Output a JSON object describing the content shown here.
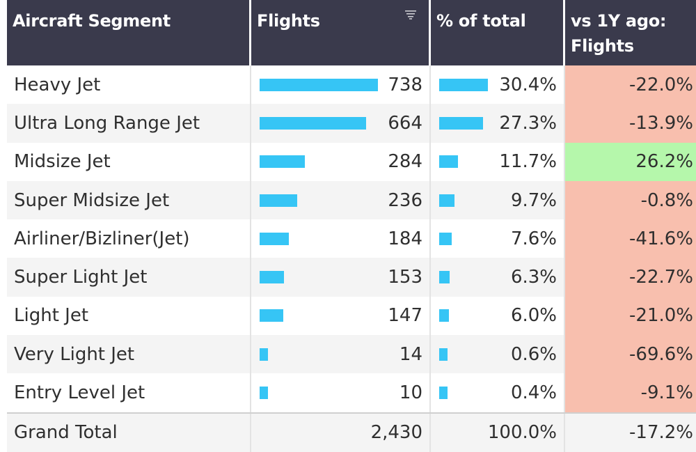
{
  "header": {
    "segment": "Aircraft Segment",
    "flights": "Flights",
    "pct": "% of total",
    "vs_line1": "vs 1Y ago:",
    "vs_line2": "Flights"
  },
  "rows": [
    {
      "segment": "Heavy Jet",
      "flights": "738",
      "pct": "30.4%",
      "vs": "-22.0%"
    },
    {
      "segment": "Ultra Long Range Jet",
      "flights": "664",
      "pct": "27.3%",
      "vs": "-13.9%"
    },
    {
      "segment": "Midsize Jet",
      "flights": "284",
      "pct": "11.7%",
      "vs": "26.2%"
    },
    {
      "segment": "Super Midsize Jet",
      "flights": "236",
      "pct": "9.7%",
      "vs": "-0.8%"
    },
    {
      "segment": "Airliner/Bizliner(Jet)",
      "flights": "184",
      "pct": "7.6%",
      "vs": "-41.6%"
    },
    {
      "segment": "Super Light Jet",
      "flights": "153",
      "pct": "6.3%",
      "vs": "-22.7%"
    },
    {
      "segment": "Light Jet",
      "flights": "147",
      "pct": "6.0%",
      "vs": "-21.0%"
    },
    {
      "segment": "Very Light Jet",
      "flights": "14",
      "pct": "0.6%",
      "vs": "-69.6%"
    },
    {
      "segment": "Entry Level Jet",
      "flights": "10",
      "pct": "0.4%",
      "vs": "-9.1%"
    }
  ],
  "total": {
    "label": "Grand Total",
    "flights": "2,430",
    "pct": "100.0%",
    "vs": "-17.2%"
  },
  "colors": {
    "header_bg": "#3a3a4c",
    "bar": "#36c5f5",
    "negative_bg": "#f8bfae",
    "positive_bg": "#b5f7ab"
  },
  "icons": {
    "flights_sort": "sort-descending-icon"
  }
}
